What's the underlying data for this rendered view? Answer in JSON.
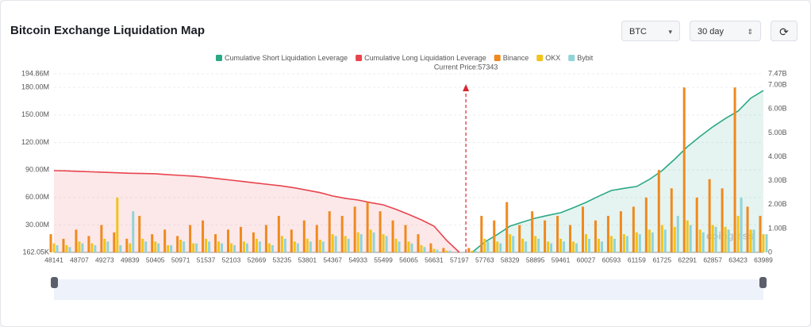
{
  "title": "Bitcoin Exchange Liquidation Map",
  "controls": {
    "coin": "BTC",
    "period": "30 day"
  },
  "chart_data": {
    "type": "liquidation-map",
    "annotation": "Current Price:57343",
    "current_price": 57343,
    "watermark": "coinglass",
    "x": [
      48141,
      48424,
      48707,
      48990,
      49273,
      49556,
      49839,
      50122,
      50405,
      50688,
      50971,
      51254,
      51537,
      51820,
      52103,
      52386,
      52669,
      52952,
      53235,
      53518,
      53801,
      54084,
      54367,
      54650,
      54933,
      55216,
      55499,
      55782,
      56065,
      56348,
      56631,
      56914,
      57197,
      57480,
      57763,
      58046,
      58329,
      58612,
      58895,
      59178,
      59461,
      59744,
      60027,
      60310,
      60593,
      60876,
      61159,
      61442,
      61725,
      62008,
      62291,
      62574,
      62857,
      63140,
      63423,
      63706,
      63989
    ],
    "xlim": [
      48141,
      63989
    ],
    "xticks": [
      48141,
      48707,
      49273,
      49839,
      50405,
      50971,
      51537,
      52103,
      52669,
      53235,
      53801,
      54367,
      54933,
      55499,
      56065,
      56631,
      57197,
      57763,
      58329,
      58895,
      59461,
      60027,
      60593,
      61159,
      61725,
      62291,
      62857,
      63423,
      63989
    ],
    "ylim": [
      162050,
      194860000
    ],
    "yticks": [
      {
        "value": 162050,
        "label": "162.05K"
      },
      {
        "value": 30000000,
        "label": "30.00M"
      },
      {
        "value": 60000000,
        "label": "60.00M"
      },
      {
        "value": 90000000,
        "label": "90.00M"
      },
      {
        "value": 120000000,
        "label": "120.00M"
      },
      {
        "value": 150000000,
        "label": "150.00M"
      },
      {
        "value": 180000000,
        "label": "180.00M"
      },
      {
        "value": 194860000,
        "label": "194.86M"
      }
    ],
    "y2lim": [
      0,
      7470000000
    ],
    "y2ticks": [
      0,
      {
        "value": 1000000000,
        "label": "1.00B"
      },
      {
        "value": 2000000000,
        "label": "2.00B"
      },
      {
        "value": 3000000000,
        "label": "3.00B"
      },
      {
        "value": 4000000000,
        "label": "4.00B"
      },
      {
        "value": 5000000000,
        "label": "5.00B"
      },
      {
        "value": 6000000000,
        "label": "6.00B"
      },
      {
        "value": 7000000000,
        "label": "7.00B"
      },
      {
        "value": 7470000000,
        "label": "7.47B"
      }
    ],
    "grid": true,
    "series": [
      {
        "name": "Cumulative Short Liquidation Leverage",
        "color": "#2ba886",
        "kind": "area",
        "axis": "y2",
        "values": [
          null,
          null,
          null,
          null,
          null,
          null,
          null,
          null,
          null,
          null,
          null,
          null,
          null,
          null,
          null,
          null,
          null,
          null,
          null,
          null,
          null,
          null,
          null,
          null,
          null,
          null,
          null,
          null,
          null,
          null,
          null,
          null,
          null,
          0,
          430000000.0,
          750000000.0,
          1100000000.0,
          1270000000.0,
          1430000000.0,
          1550000000.0,
          1660000000.0,
          1870000000.0,
          2090000000.0,
          2350000000.0,
          2590000000.0,
          2680000000.0,
          2760000000.0,
          3050000000.0,
          3420000000.0,
          3900000000.0,
          4420000000.0,
          4850000000.0,
          5250000000.0,
          5600000000.0,
          5910000000.0,
          6450000000.0,
          6770000000.0
        ]
      },
      {
        "name": "Cumulative Long Liquidation Leverage",
        "color": "#e8444e",
        "kind": "area",
        "axis": "y2",
        "values": [
          3420000000.0,
          3410000000.0,
          3390000000.0,
          3370000000.0,
          3350000000.0,
          3330000000.0,
          3310000000.0,
          3300000000.0,
          3290000000.0,
          3250000000.0,
          3220000000.0,
          3190000000.0,
          3140000000.0,
          3080000000.0,
          3020000000.0,
          2960000000.0,
          2900000000.0,
          2840000000.0,
          2780000000.0,
          2700000000.0,
          2600000000.0,
          2500000000.0,
          2360000000.0,
          2260000000.0,
          2190000000.0,
          2080000000.0,
          1990000000.0,
          1800000000.0,
          1590000000.0,
          1360000000.0,
          1100000000.0,
          500000000.0,
          0,
          null,
          null,
          null,
          null,
          null,
          null,
          null,
          null,
          null,
          null,
          null,
          null,
          null,
          null,
          null,
          null,
          null,
          null,
          null,
          null,
          null,
          null,
          null,
          null
        ]
      },
      {
        "name": "Binance",
        "color": "#f0891e",
        "kind": "bar",
        "values": [
          20000000.0,
          15000000.0,
          25000000.0,
          18000000.0,
          30000000.0,
          22000000.0,
          15000000.0,
          40000000.0,
          20000000.0,
          25000000.0,
          18000000.0,
          30000000.0,
          35000000.0,
          20000000.0,
          25000000.0,
          28000000.0,
          22000000.0,
          30000000.0,
          40000000.0,
          25000000.0,
          35000000.0,
          30000000.0,
          45000000.0,
          40000000.0,
          50000000.0,
          55000000.0,
          45000000.0,
          35000000.0,
          30000000.0,
          20000000.0,
          10000000.0,
          5000000.0,
          0,
          5000000.0,
          40000000.0,
          35000000.0,
          55000000.0,
          30000000.0,
          45000000.0,
          35000000.0,
          40000000.0,
          30000000.0,
          50000000.0,
          35000000.0,
          40000000.0,
          45000000.0,
          50000000.0,
          60000000.0,
          90000000.0,
          70000000.0,
          180000000.0,
          60000000.0,
          80000000.0,
          70000000.0,
          180000000.0,
          50000000.0,
          40000000.0
        ]
      },
      {
        "name": "OKX",
        "color": "#f2c31a",
        "kind": "bar",
        "values": [
          10000000.0,
          8000000.0,
          12000000.0,
          10000000.0,
          15000000.0,
          60000000.0,
          10000000.0,
          15000000.0,
          12000000.0,
          8000000.0,
          14000000.0,
          10000000.0,
          15000000.0,
          12000000.0,
          10000000.0,
          12000000.0,
          15000000.0,
          10000000.0,
          18000000.0,
          12000000.0,
          15000000.0,
          14000000.0,
          20000000.0,
          18000000.0,
          22000000.0,
          25000000.0,
          20000000.0,
          15000000.0,
          12000000.0,
          8000000.0,
          4000000.0,
          2000000.0,
          0,
          2000000.0,
          15000000.0,
          12000000.0,
          20000000.0,
          15000000.0,
          18000000.0,
          12000000.0,
          15000000.0,
          12000000.0,
          20000000.0,
          15000000.0,
          18000000.0,
          20000000.0,
          22000000.0,
          25000000.0,
          30000000.0,
          28000000.0,
          35000000.0,
          25000000.0,
          30000000.0,
          28000000.0,
          40000000.0,
          25000000.0,
          20000000.0
        ]
      },
      {
        "name": "Bybit",
        "color": "#8fd4d8",
        "kind": "bar",
        "values": [
          8000000.0,
          6000000.0,
          10000000.0,
          8000000.0,
          12000000.0,
          8000000.0,
          45000000.0,
          12000000.0,
          10000000.0,
          8000000.0,
          12000000.0,
          10000000.0,
          12000000.0,
          10000000.0,
          8000000.0,
          10000000.0,
          12000000.0,
          8000000.0,
          15000000.0,
          10000000.0,
          12000000.0,
          12000000.0,
          18000000.0,
          15000000.0,
          20000000.0,
          22000000.0,
          18000000.0,
          12000000.0,
          10000000.0,
          6000000.0,
          3000000.0,
          2000000.0,
          0,
          2000000.0,
          12000000.0,
          10000000.0,
          18000000.0,
          12000000.0,
          15000000.0,
          10000000.0,
          12000000.0,
          10000000.0,
          15000000.0,
          12000000.0,
          15000000.0,
          18000000.0,
          20000000.0,
          22000000.0,
          25000000.0,
          40000000.0,
          30000000.0,
          22000000.0,
          28000000.0,
          25000000.0,
          60000000.0,
          25000000.0,
          20000000.0
        ]
      }
    ]
  }
}
